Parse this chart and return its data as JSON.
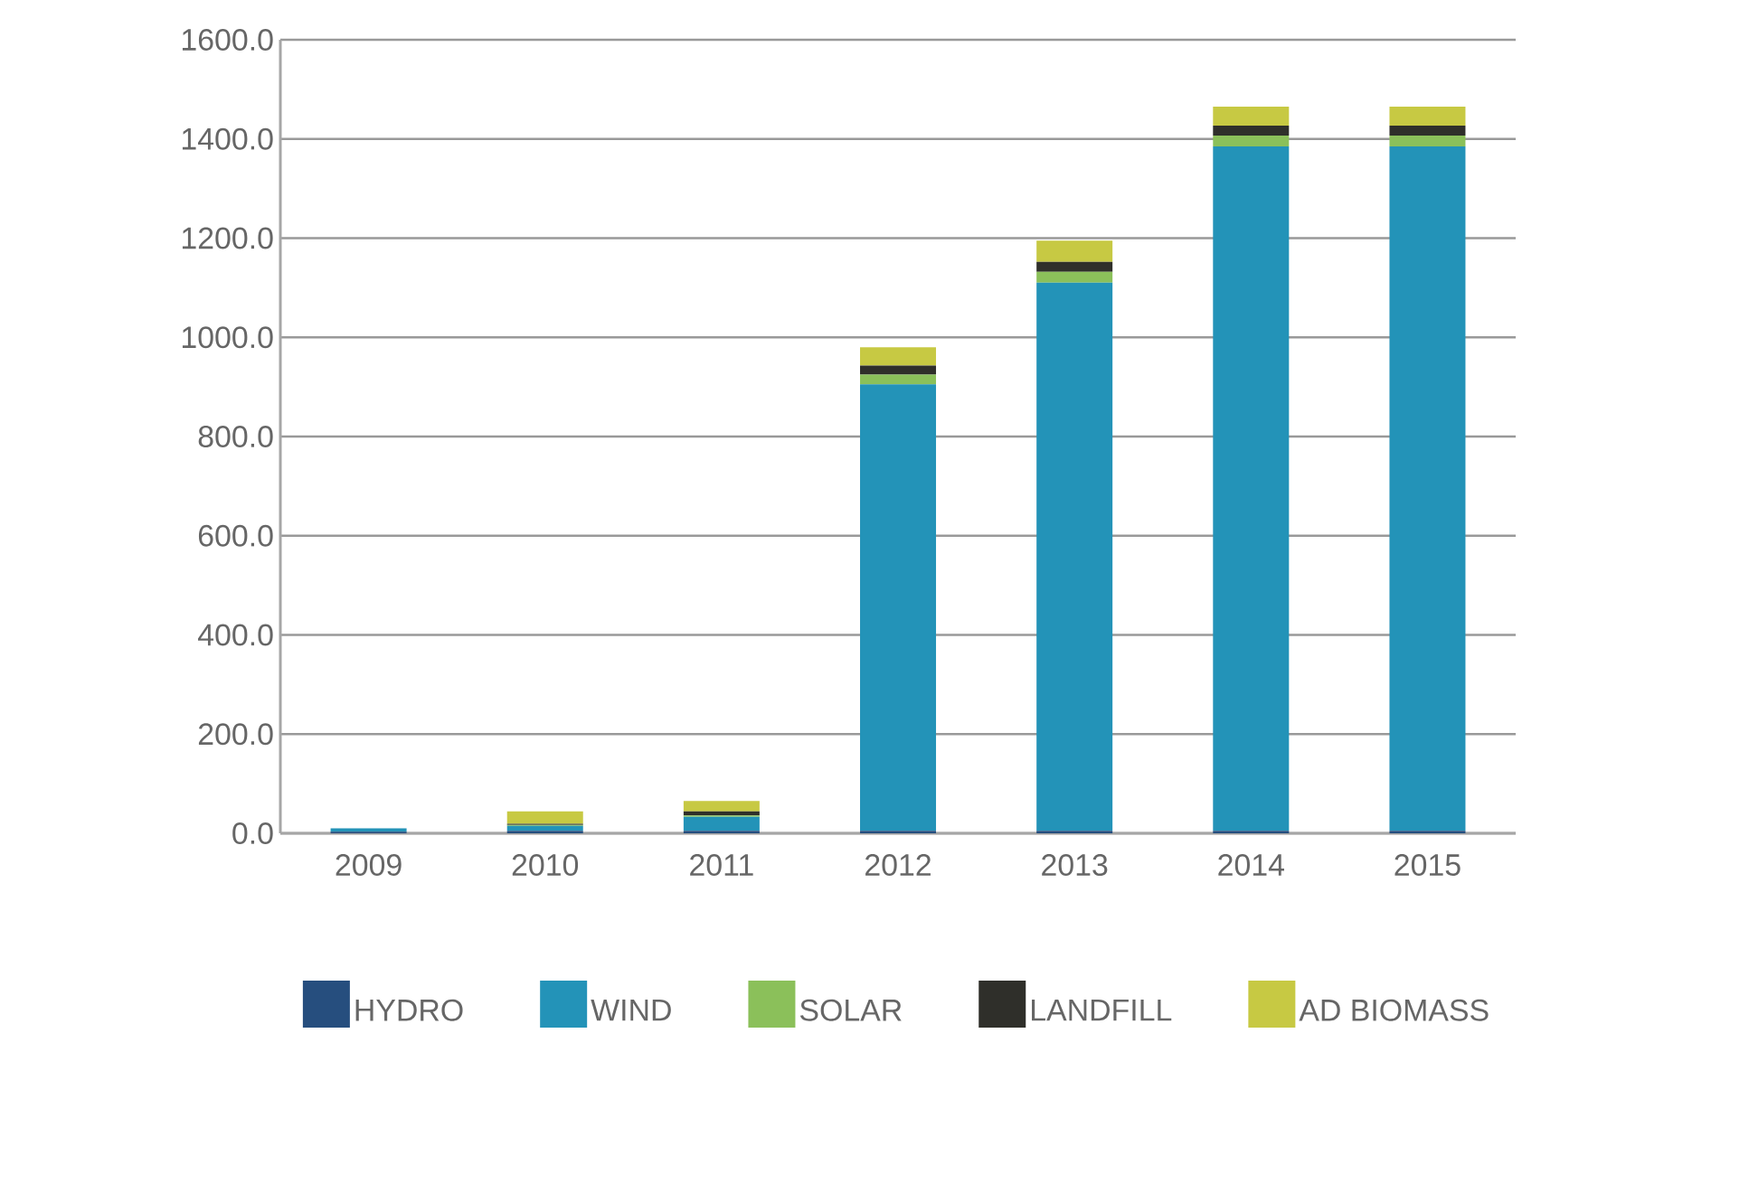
{
  "chart_data": {
    "type": "bar",
    "stacked": true,
    "categories": [
      "2009",
      "2010",
      "2011",
      "2012",
      "2013",
      "2014",
      "2015"
    ],
    "series": [
      {
        "name": "HYDRO",
        "color": "#264e7e",
        "values": [
          3,
          5,
          5,
          5,
          5,
          5,
          5
        ]
      },
      {
        "name": "WIND",
        "color": "#2393b8",
        "values": [
          7,
          10,
          28,
          900,
          1105,
          1380,
          1380
        ]
      },
      {
        "name": "SOLAR",
        "color": "#8bc05a",
        "values": [
          0,
          2,
          3,
          20,
          22,
          22,
          22
        ]
      },
      {
        "name": "LANDFILL",
        "color": "#2f2f2a",
        "values": [
          0,
          2,
          8,
          18,
          20,
          20,
          20
        ]
      },
      {
        "name": "AD BIOMASS",
        "color": "#c7c943",
        "values": [
          0,
          25,
          21,
          37,
          43,
          38,
          38
        ]
      }
    ],
    "ylim": [
      0,
      1600
    ],
    "yticks": [
      {
        "value": 0,
        "label": "0.0"
      },
      {
        "value": 200,
        "label": "200.0"
      },
      {
        "value": 400,
        "label": "400.0"
      },
      {
        "value": 600,
        "label": "600.0"
      },
      {
        "value": 800,
        "label": "800.0"
      },
      {
        "value": 1000,
        "label": "1000.0"
      },
      {
        "value": 1200,
        "label": "1200.0"
      },
      {
        "value": 1400,
        "label": "1400.0"
      },
      {
        "value": 1600,
        "label": "1600.0"
      }
    ],
    "grid": "y",
    "legend": "bottom"
  }
}
